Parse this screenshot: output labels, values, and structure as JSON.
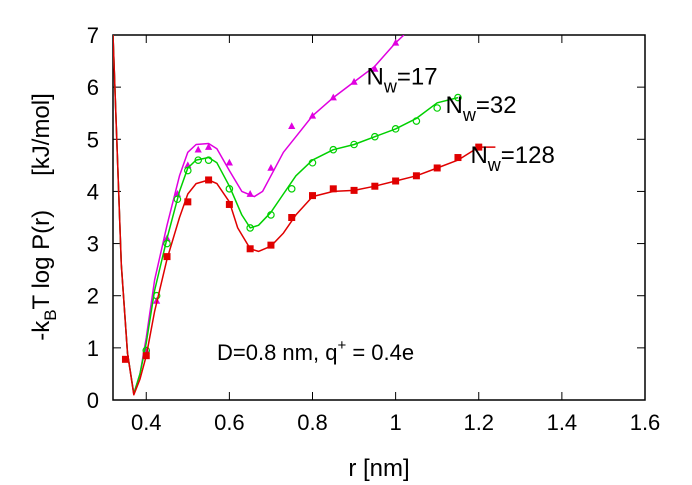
{
  "chart_data": {
    "type": "line",
    "xlabel": "r [nm]",
    "ylabel": {
      "part1": "-k",
      "sub": "B",
      "part2": "T log P(r)",
      "unit": "[kJ/mol]"
    },
    "annotation": {
      "text": "D=0.8 nm, q",
      "sup": "+",
      "text2": " = 0.4e"
    },
    "xlim": [
      0.32,
      1.6
    ],
    "ylim": [
      0,
      7
    ],
    "xticks": [
      "0.4",
      "0.6",
      "0.8",
      "1",
      "1.2",
      "1.4",
      "1.6"
    ],
    "xtick_values": [
      0.4,
      0.6,
      0.8,
      1.0,
      1.2,
      1.4,
      1.6
    ],
    "yticks": [
      "0",
      "1",
      "2",
      "3",
      "4",
      "5",
      "6",
      "7"
    ],
    "ytick_values": [
      0,
      1,
      2,
      3,
      4,
      5,
      6,
      7
    ],
    "series": [
      {
        "label_main": "N",
        "label_sub": "w",
        "label_rest": "=17",
        "label_at": [
          0.93,
          6.05
        ],
        "color": "#e000e0",
        "marker": "triangle",
        "curve": [
          [
            0.32,
            7.0
          ],
          [
            0.34,
            2.6
          ],
          [
            0.355,
            0.9
          ],
          [
            0.37,
            0.12
          ],
          [
            0.385,
            0.5
          ],
          [
            0.4,
            1.2
          ],
          [
            0.42,
            2.3
          ],
          [
            0.45,
            3.35
          ],
          [
            0.48,
            4.3
          ],
          [
            0.5,
            4.75
          ],
          [
            0.52,
            4.9
          ],
          [
            0.55,
            4.92
          ],
          [
            0.57,
            4.82
          ],
          [
            0.6,
            4.4
          ],
          [
            0.63,
            4.0
          ],
          [
            0.66,
            3.9
          ],
          [
            0.68,
            4.0
          ],
          [
            0.7,
            4.3
          ],
          [
            0.73,
            4.75
          ],
          [
            0.76,
            5.05
          ],
          [
            0.8,
            5.45
          ],
          [
            0.85,
            5.8
          ],
          [
            0.9,
            6.1
          ],
          [
            0.95,
            6.4
          ],
          [
            1.0,
            6.85
          ],
          [
            1.02,
            7.0
          ]
        ],
        "points": [
          [
            0.4,
            0.95
          ],
          [
            0.425,
            1.9
          ],
          [
            0.45,
            3.1
          ],
          [
            0.475,
            3.95
          ],
          [
            0.5,
            4.5
          ],
          [
            0.525,
            4.8
          ],
          [
            0.55,
            4.85
          ],
          [
            0.6,
            4.55
          ],
          [
            0.65,
            3.95
          ],
          [
            0.7,
            4.45
          ],
          [
            0.75,
            5.25
          ],
          [
            0.8,
            5.45
          ],
          [
            0.85,
            5.8
          ],
          [
            0.9,
            6.1
          ],
          [
            0.95,
            6.35
          ],
          [
            1.0,
            6.85
          ]
        ]
      },
      {
        "label_main": "N",
        "label_sub": "w",
        "label_rest": "=32",
        "label_at": [
          1.12,
          5.5
        ],
        "color": "#00d000",
        "marker": "circle",
        "curve": [
          [
            0.32,
            7.0
          ],
          [
            0.34,
            2.6
          ],
          [
            0.355,
            0.9
          ],
          [
            0.37,
            0.12
          ],
          [
            0.385,
            0.5
          ],
          [
            0.4,
            1.1
          ],
          [
            0.42,
            2.1
          ],
          [
            0.45,
            3.1
          ],
          [
            0.48,
            4.0
          ],
          [
            0.5,
            4.45
          ],
          [
            0.52,
            4.6
          ],
          [
            0.55,
            4.65
          ],
          [
            0.57,
            4.55
          ],
          [
            0.6,
            4.1
          ],
          [
            0.63,
            3.55
          ],
          [
            0.65,
            3.3
          ],
          [
            0.67,
            3.35
          ],
          [
            0.7,
            3.6
          ],
          [
            0.73,
            3.95
          ],
          [
            0.76,
            4.3
          ],
          [
            0.8,
            4.6
          ],
          [
            0.85,
            4.8
          ],
          [
            0.9,
            4.9
          ],
          [
            0.95,
            5.05
          ],
          [
            1.0,
            5.2
          ],
          [
            1.05,
            5.4
          ],
          [
            1.1,
            5.7
          ],
          [
            1.15,
            5.8
          ]
        ],
        "points": [
          [
            0.4,
            0.95
          ],
          [
            0.425,
            2.0
          ],
          [
            0.45,
            3.0
          ],
          [
            0.475,
            3.85
          ],
          [
            0.5,
            4.4
          ],
          [
            0.525,
            4.6
          ],
          [
            0.55,
            4.6
          ],
          [
            0.6,
            4.05
          ],
          [
            0.65,
            3.3
          ],
          [
            0.7,
            3.55
          ],
          [
            0.75,
            4.05
          ],
          [
            0.8,
            4.55
          ],
          [
            0.85,
            4.8
          ],
          [
            0.9,
            4.9
          ],
          [
            0.95,
            5.05
          ],
          [
            1.0,
            5.2
          ],
          [
            1.05,
            5.35
          ],
          [
            1.1,
            5.6
          ],
          [
            1.15,
            5.8
          ]
        ]
      },
      {
        "label_main": "N",
        "label_sub": "w",
        "label_rest": "=128",
        "label_at": [
          1.18,
          4.55
        ],
        "color": "#e00000",
        "marker": "square",
        "curve": [
          [
            0.32,
            7.0
          ],
          [
            0.34,
            2.6
          ],
          [
            0.355,
            0.9
          ],
          [
            0.37,
            0.1
          ],
          [
            0.385,
            0.4
          ],
          [
            0.4,
            0.85
          ],
          [
            0.42,
            1.7
          ],
          [
            0.45,
            2.7
          ],
          [
            0.48,
            3.5
          ],
          [
            0.5,
            3.95
          ],
          [
            0.52,
            4.15
          ],
          [
            0.55,
            4.22
          ],
          [
            0.57,
            4.15
          ],
          [
            0.6,
            3.8
          ],
          [
            0.62,
            3.3
          ],
          [
            0.65,
            2.9
          ],
          [
            0.67,
            2.85
          ],
          [
            0.7,
            2.95
          ],
          [
            0.73,
            3.2
          ],
          [
            0.76,
            3.55
          ],
          [
            0.8,
            3.9
          ],
          [
            0.85,
            4.0
          ],
          [
            0.9,
            4.02
          ],
          [
            0.95,
            4.1
          ],
          [
            1.0,
            4.2
          ],
          [
            1.05,
            4.3
          ],
          [
            1.1,
            4.45
          ],
          [
            1.15,
            4.6
          ],
          [
            1.2,
            4.85
          ],
          [
            1.24,
            4.85
          ]
        ],
        "points": [
          [
            0.35,
            0.78
          ],
          [
            0.4,
            0.85
          ],
          [
            0.45,
            2.75
          ],
          [
            0.5,
            3.8
          ],
          [
            0.55,
            4.22
          ],
          [
            0.6,
            3.75
          ],
          [
            0.65,
            2.9
          ],
          [
            0.7,
            2.97
          ],
          [
            0.75,
            3.5
          ],
          [
            0.8,
            3.92
          ],
          [
            0.85,
            4.05
          ],
          [
            0.9,
            4.02
          ],
          [
            0.95,
            4.1
          ],
          [
            1.0,
            4.2
          ],
          [
            1.05,
            4.3
          ],
          [
            1.1,
            4.45
          ],
          [
            1.15,
            4.65
          ],
          [
            1.2,
            4.85
          ]
        ]
      }
    ]
  }
}
